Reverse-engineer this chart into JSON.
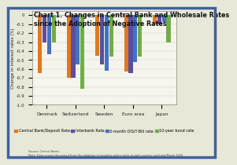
{
  "title": "Chart 1. Changes in Central Bank and Wholesale Rates\nsince the Adoption of Negative Rates",
  "categories": [
    "Denmark",
    "Switzerland",
    "Sweden",
    "Euro area",
    "Japan"
  ],
  "series_labels": [
    "Central Bank/Deposit Rate",
    "Interbank Rate",
    "3-month OIS/T-Bill rate",
    "10-year bond rate"
  ],
  "series_colors": [
    "#E07820",
    "#5B4EA0",
    "#4472C4",
    "#70AD47"
  ],
  "values": [
    [
      -0.65,
      -0.7,
      -0.45,
      -0.63,
      -0.1
    ],
    [
      -0.3,
      -0.7,
      -0.55,
      -0.65,
      -0.1
    ],
    [
      -0.44,
      -0.55,
      -0.62,
      -0.52,
      -0.08
    ],
    [
      -0.3,
      -0.82,
      -0.46,
      -0.46,
      -0.3
    ]
  ],
  "ylabel": "Change in interest rates (%)",
  "ylim": [
    -1.0,
    0.05
  ],
  "ytick_vals": [
    0.0,
    -0.1,
    -0.2,
    -0.3,
    -0.4,
    -0.5,
    -0.6,
    -0.7,
    -0.8,
    -0.9,
    -1.0
  ],
  "background_color": "#E8E8D8",
  "plot_bg_color": "#F5F5EE",
  "border_color": "#4060A0",
  "source_text": "Source: Central Banks\nNote: Data covers the period from the adoption of negative policy rates in each country until end March 2016",
  "title_fontsize": 5.8,
  "axis_fontsize": 4.2,
  "legend_fontsize": 3.5,
  "ylabel_fontsize": 4.0
}
